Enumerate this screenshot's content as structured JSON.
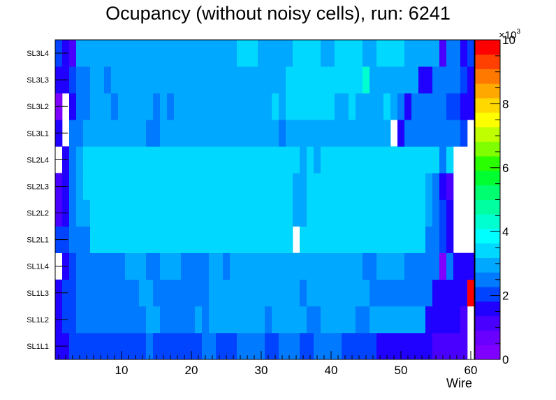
{
  "chart_data": {
    "type": "heatmap",
    "title": "Ocupancy (without noisy cells), run: 6241",
    "xlabel": "Wire",
    "ylabel": "",
    "xlim": [
      0.5,
      60.5
    ],
    "x_ticks": [
      10,
      20,
      30,
      40,
      50,
      60
    ],
    "y_categories": [
      "SL1L1",
      "SL1L2",
      "SL1L3",
      "SL1L4",
      "SL2L1",
      "SL2L2",
      "SL2L3",
      "SL2L4",
      "SL3L1",
      "SL3L2",
      "SL3L3",
      "SL3L4"
    ],
    "z_range": [
      0,
      10000
    ],
    "z_axis_ticks": [
      0,
      2,
      4,
      6,
      8,
      10
    ],
    "z_axis_multiplier": "×10",
    "z_axis_multiplier_exp": "3",
    "colormap": "rainbow",
    "palette": [
      "#8000ff",
      "#6a00ff",
      "#4a00ff",
      "#2000ff",
      "#0044ff",
      "#007aff",
      "#00a8ff",
      "#00d8ff",
      "#00ffff",
      "#00ffd0",
      "#00ffa0",
      "#00ff70",
      "#00ff30",
      "#2aff00",
      "#80ff00",
      "#c0ff00",
      "#ffff00",
      "#ffd800",
      "#ffa800",
      "#ff7800",
      "#ff4000",
      "#ff0000"
    ],
    "z": [
      [
        1480,
        1480,
        1820,
        1820,
        1820,
        1820,
        1820,
        1820,
        1820,
        1820,
        1820,
        1820,
        1820,
        2440,
        1820,
        1820,
        1820,
        1820,
        1820,
        1820,
        1820,
        2440,
        2440,
        1820,
        1820,
        1820,
        2440,
        2440,
        2440,
        2440,
        1820,
        1820,
        2440,
        2440,
        2440,
        1820,
        1820,
        2440,
        2440,
        2440,
        2440,
        1820,
        1820,
        1820,
        1820,
        1820,
        1480,
        1480,
        1480,
        1480,
        1480,
        1480,
        1480,
        1480,
        1160,
        1160,
        1160,
        1160,
        1160,
        -1
      ],
      [
        1480,
        1820,
        1820,
        2440,
        2440,
        2440,
        2440,
        2440,
        2440,
        2440,
        2440,
        2440,
        2440,
        3140,
        3140,
        2440,
        2440,
        2440,
        2440,
        2440,
        3140,
        2440,
        3140,
        3140,
        3140,
        3140,
        3140,
        3140,
        3140,
        3140,
        2440,
        3140,
        3140,
        3140,
        3140,
        3140,
        2440,
        2440,
        3140,
        3140,
        3140,
        3140,
        3140,
        2440,
        2440,
        3140,
        3140,
        3140,
        3140,
        3140,
        3140,
        3140,
        3140,
        1480,
        1480,
        1480,
        1480,
        1480,
        1160,
        -1
      ],
      [
        1480,
        1820,
        1820,
        2440,
        2440,
        2440,
        2440,
        2440,
        2440,
        2440,
        2440,
        2440,
        3140,
        3140,
        2440,
        2440,
        2440,
        2440,
        2440,
        2440,
        2440,
        2440,
        3140,
        3140,
        3140,
        3140,
        3140,
        3140,
        3140,
        3140,
        3140,
        3140,
        3140,
        3140,
        3140,
        2440,
        3140,
        3140,
        3140,
        3140,
        3140,
        3140,
        3140,
        3140,
        3140,
        2440,
        2440,
        2440,
        2440,
        2440,
        2440,
        2440,
        2440,
        2440,
        1480,
        1480,
        1480,
        1480,
        1480,
        9950
      ],
      [
        -1,
        1480,
        1820,
        2440,
        2440,
        2440,
        2440,
        2440,
        2440,
        2440,
        3140,
        3140,
        3140,
        2440,
        2440,
        3140,
        3140,
        3140,
        2440,
        2440,
        2440,
        2440,
        3140,
        3140,
        2440,
        3140,
        3140,
        3140,
        3140,
        3140,
        3140,
        3140,
        3140,
        3140,
        3140,
        3140,
        3140,
        3140,
        3140,
        3140,
        3140,
        3140,
        3140,
        3140,
        2440,
        2440,
        3140,
        3140,
        3140,
        3140,
        2440,
        2440,
        2440,
        2440,
        2440,
        420,
        2440,
        1480,
        1480,
        1480
      ],
      [
        1820,
        1820,
        2440,
        2440,
        2440,
        3620,
        3620,
        3620,
        3620,
        3620,
        3620,
        3620,
        3620,
        3620,
        3620,
        3620,
        3620,
        3620,
        3620,
        3620,
        3620,
        3620,
        3620,
        3620,
        3620,
        3620,
        3620,
        3620,
        3620,
        3620,
        3620,
        3620,
        3620,
        3620,
        -1,
        3620,
        3620,
        3620,
        3620,
        3620,
        3620,
        3620,
        3620,
        3620,
        3620,
        3620,
        3620,
        3620,
        3620,
        3620,
        3620,
        3620,
        3620,
        2440,
        2440,
        1820,
        1480,
        -1,
        -1,
        -1
      ],
      [
        1160,
        1480,
        2440,
        3140,
        3140,
        3620,
        3620,
        3620,
        3620,
        3620,
        3620,
        3620,
        3620,
        3620,
        3620,
        3620,
        3620,
        3620,
        3620,
        3620,
        3620,
        3620,
        3620,
        3620,
        3620,
        3620,
        3620,
        3620,
        3620,
        3620,
        3620,
        3620,
        3620,
        3620,
        3140,
        3140,
        3620,
        3620,
        3620,
        3620,
        3620,
        3620,
        3620,
        3620,
        3620,
        3620,
        3620,
        3620,
        3620,
        3620,
        3620,
        3620,
        3620,
        3140,
        2440,
        1820,
        1480,
        -1,
        -1,
        -1
      ],
      [
        1160,
        1480,
        2440,
        3140,
        3620,
        3620,
        3620,
        3620,
        3620,
        3620,
        3620,
        3620,
        3620,
        3620,
        3620,
        3620,
        3620,
        3620,
        3620,
        3620,
        3620,
        3620,
        3620,
        3620,
        3620,
        3620,
        3620,
        3620,
        3620,
        3620,
        3620,
        3620,
        3620,
        3620,
        3140,
        3140,
        3620,
        3620,
        3620,
        3620,
        3620,
        3620,
        3620,
        3620,
        3620,
        3620,
        3620,
        3620,
        3620,
        3620,
        3620,
        3620,
        3620,
        3140,
        2440,
        1480,
        1160,
        -1,
        -1,
        -1
      ],
      [
        -1,
        1480,
        2440,
        3140,
        3620,
        3620,
        3620,
        3620,
        3620,
        3620,
        3620,
        3620,
        3620,
        3620,
        3620,
        3620,
        3620,
        3620,
        3620,
        3620,
        3620,
        3620,
        3620,
        3620,
        3620,
        3620,
        3620,
        3620,
        3620,
        3620,
        3620,
        3620,
        3620,
        3620,
        3620,
        3140,
        3620,
        3140,
        3620,
        3620,
        3620,
        3620,
        3620,
        3620,
        3620,
        3620,
        3620,
        3620,
        3620,
        3620,
        3620,
        3620,
        3620,
        3620,
        3620,
        2440,
        3620,
        -1,
        -1,
        -1
      ],
      [
        1480,
        -1,
        2440,
        2440,
        3140,
        3140,
        3140,
        3140,
        3140,
        3140,
        3140,
        3140,
        3140,
        2440,
        2440,
        3140,
        3140,
        3140,
        3140,
        3140,
        3140,
        3140,
        3140,
        3140,
        3140,
        3140,
        3140,
        3140,
        3140,
        3140,
        3140,
        3140,
        2440,
        3140,
        3140,
        3140,
        3140,
        3140,
        3140,
        3140,
        3140,
        3140,
        3140,
        3140,
        3140,
        3140,
        3140,
        3140,
        -1,
        1480,
        2440,
        2440,
        2440,
        2440,
        2440,
        2440,
        2440,
        2440,
        1820,
        -1
      ],
      [
        420,
        -1,
        1480,
        2440,
        2440,
        3140,
        3140,
        3140,
        2440,
        3140,
        3140,
        3140,
        3140,
        3140,
        2440,
        3140,
        2440,
        3140,
        3140,
        3140,
        3140,
        3140,
        3140,
        3140,
        3140,
        3140,
        3140,
        3140,
        3140,
        3140,
        3140,
        3620,
        3140,
        3620,
        3620,
        3620,
        3620,
        3620,
        3620,
        3620,
        3140,
        3140,
        3620,
        3140,
        3140,
        3140,
        3140,
        3620,
        3140,
        2440,
        1480,
        2440,
        2440,
        2440,
        2440,
        2440,
        1820,
        1820,
        1480,
        1480
      ],
      [
        1480,
        1480,
        1820,
        2440,
        2440,
        3140,
        3140,
        2440,
        3140,
        3140,
        3140,
        3140,
        3140,
        3140,
        3140,
        3140,
        3140,
        3140,
        3140,
        3140,
        3140,
        3140,
        3140,
        3140,
        3140,
        3140,
        3140,
        3140,
        3140,
        3140,
        3140,
        3140,
        3140,
        3620,
        3620,
        3620,
        3620,
        3620,
        3620,
        3620,
        3620,
        3620,
        3620,
        3620,
        4380,
        3140,
        3140,
        3140,
        3140,
        3140,
        3140,
        3140,
        1480,
        1480,
        2440,
        2440,
        2440,
        2440,
        1820,
        1480
      ],
      [
        1820,
        1480,
        1160,
        3140,
        3140,
        3140,
        3140,
        3140,
        3140,
        3140,
        3140,
        3140,
        3140,
        3140,
        3140,
        3140,
        3140,
        3140,
        3140,
        3140,
        3140,
        3140,
        3140,
        3140,
        3140,
        3140,
        3620,
        3620,
        3620,
        3140,
        3140,
        3140,
        3140,
        3140,
        3620,
        3620,
        3620,
        3620,
        3140,
        3140,
        3620,
        3620,
        3620,
        3620,
        3140,
        3140,
        3620,
        3620,
        3620,
        3620,
        3140,
        3140,
        3140,
        3140,
        3140,
        1160,
        2440,
        2440,
        1480,
        1820
      ]
    ]
  }
}
